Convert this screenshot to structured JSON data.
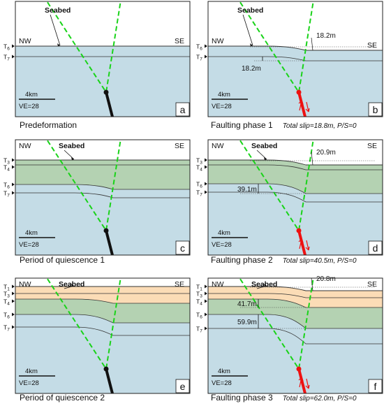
{
  "panels": [
    {
      "letter": "a",
      "caption": "Predeformation",
      "subcaption": "",
      "direction_left": "NW",
      "direction_right": "SE",
      "seabed_label": "Seabed",
      "scale_label": "4km",
      "ve_label": "VE=28",
      "horizon_labels": [
        "T6",
        "T7"
      ],
      "measurements": []
    },
    {
      "letter": "b",
      "caption": "Faulting phase 1",
      "subcaption": "Total slip=18.8m, P/S=0",
      "direction_left": "NW",
      "direction_right": "SE",
      "seabed_label": "Seabed",
      "scale_label": "4km",
      "ve_label": "VE=28",
      "horizon_labels": [
        "T6",
        "T7"
      ],
      "measurements": [
        "18.2m",
        "18.2m"
      ]
    },
    {
      "letter": "c",
      "caption": "Period of quiescence 1",
      "subcaption": "",
      "direction_left": "NW",
      "direction_right": "SE",
      "seabed_label": "Seabed",
      "scale_label": "4km",
      "ve_label": "VE=28",
      "horizon_labels": [
        "T3",
        "T4",
        "T6",
        "T7"
      ],
      "measurements": []
    },
    {
      "letter": "d",
      "caption": "Faulting phase 2",
      "subcaption": "Total slip=40.5m, P/S=0",
      "direction_left": "NW",
      "direction_right": "SE",
      "seabed_label": "Seabed",
      "scale_label": "4km",
      "ve_label": "VE=28",
      "horizon_labels": [
        "T3",
        "T4",
        "T6",
        "T7"
      ],
      "measurements": [
        "20.9m",
        "39.1m"
      ]
    },
    {
      "letter": "e",
      "caption": "Period of quiescence 2",
      "subcaption": "",
      "direction_left": "NW",
      "direction_right": "SE",
      "seabed_label": "Seabed",
      "scale_label": "4km",
      "ve_label": "VE=28",
      "horizon_labels": [
        "T1",
        "T3",
        "T4",
        "T6",
        "T7"
      ],
      "measurements": []
    },
    {
      "letter": "f",
      "caption": "Faulting phase 3",
      "subcaption": "Total slip=62.0m, P/S=0",
      "direction_left": "NW",
      "direction_right": "SE",
      "seabed_label": "Seabed",
      "scale_label": "4km",
      "ve_label": "VE=28",
      "horizon_labels": [
        "T1",
        "T3",
        "T4",
        "T6",
        "T7"
      ],
      "measurements": [
        "20.8m",
        "41.7m",
        "59.9m"
      ]
    }
  ],
  "colors": {
    "water": "#ffffff",
    "blue_layer": "#c4dce6",
    "green_layer": "#b4d2b2",
    "orange_layer": "#fbdcb6",
    "fault_dashed": "#19d319",
    "fault_active": "#ee1111",
    "fault_inactive": "#111111",
    "frame": "#222222"
  }
}
